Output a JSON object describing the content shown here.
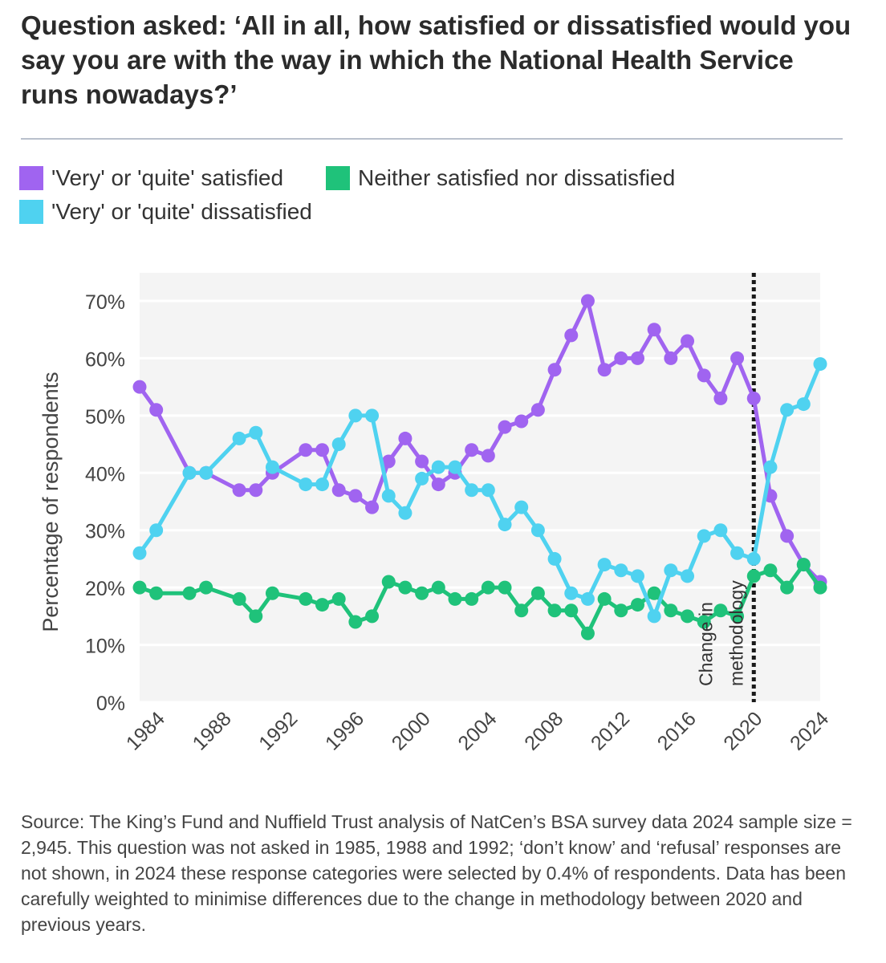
{
  "title": "Question asked: ‘All in all, how satisfied or dissatisfied would you say you are with the way in which the National Health Service runs nowadays?’",
  "legend": [
    {
      "label": "'Very' or 'quite' satisfied",
      "color": "#a064f0"
    },
    {
      "label": "Neither satisfied nor dissatisfied",
      "color": "#1fc27a"
    },
    {
      "label": "'Very' or 'quite' dissatisfied",
      "color": "#4fd2f0"
    }
  ],
  "chart_data": {
    "type": "line",
    "ylabel": "Percentage of respondents",
    "xlabel": "",
    "ylim": [
      0,
      70
    ],
    "xlim": [
      1983,
      2024
    ],
    "yticks": [
      0,
      10,
      20,
      30,
      40,
      50,
      60,
      70
    ],
    "ytick_labels": [
      "0%",
      "10%",
      "20%",
      "30%",
      "40%",
      "50%",
      "60%",
      "70%"
    ],
    "xticks": [
      1984,
      1988,
      1992,
      1996,
      2000,
      2004,
      2008,
      2012,
      2016,
      2020,
      2024
    ],
    "xtick_labels": [
      "1984",
      "1988",
      "1992",
      "1996",
      "2000",
      "2004",
      "2008",
      "2012",
      "2016",
      "2020",
      "2024"
    ],
    "grid": "horizontal",
    "annotation": {
      "x": 2020,
      "label": "Change in methodology"
    },
    "x": [
      1983,
      1984,
      1986,
      1987,
      1989,
      1990,
      1991,
      1993,
      1994,
      1995,
      1996,
      1997,
      1998,
      1999,
      2000,
      2001,
      2002,
      2003,
      2004,
      2005,
      2006,
      2007,
      2008,
      2009,
      2010,
      2011,
      2012,
      2013,
      2014,
      2015,
      2016,
      2017,
      2018,
      2019,
      2020,
      2021,
      2022,
      2023,
      2024
    ],
    "series": [
      {
        "name": "'Very' or 'quite' satisfied",
        "color": "#a064f0",
        "values": [
          55,
          51,
          40,
          40,
          37,
          37,
          40,
          44,
          44,
          37,
          36,
          34,
          42,
          46,
          42,
          38,
          40,
          44,
          43,
          48,
          49,
          51,
          58,
          64,
          70,
          58,
          60,
          60,
          65,
          60,
          63,
          57,
          53,
          60,
          53,
          36,
          29,
          24,
          21
        ]
      },
      {
        "name": "Neither satisfied nor dissatisfied",
        "color": "#1fc27a",
        "values": [
          20,
          19,
          19,
          20,
          18,
          15,
          19,
          18,
          17,
          18,
          14,
          15,
          21,
          20,
          19,
          20,
          18,
          18,
          20,
          20,
          16,
          19,
          16,
          16,
          12,
          18,
          16,
          17,
          19,
          16,
          15,
          14,
          16,
          15,
          22,
          23,
          20,
          24,
          20
        ]
      },
      {
        "name": "'Very' or 'quite' dissatisfied",
        "color": "#4fd2f0",
        "values": [
          26,
          30,
          40,
          40,
          46,
          47,
          41,
          38,
          38,
          45,
          50,
          50,
          36,
          33,
          39,
          41,
          41,
          37,
          37,
          31,
          34,
          30,
          25,
          19,
          18,
          24,
          23,
          22,
          15,
          23,
          22,
          29,
          30,
          26,
          25,
          41,
          51,
          52,
          59
        ]
      }
    ]
  },
  "source": "Source: The King’s Fund and Nuffield Trust analysis of NatCen’s BSA survey data 2024 sample size = 2,945. This question was not asked in 1985, 1988 and 1992; ‘don’t know’ and ‘refusal’ responses are not shown, in 2024 these response categories were selected by 0.4% of respondents. Data has been carefully weighted to minimise differences due to the change in methodology between 2020 and previous years."
}
